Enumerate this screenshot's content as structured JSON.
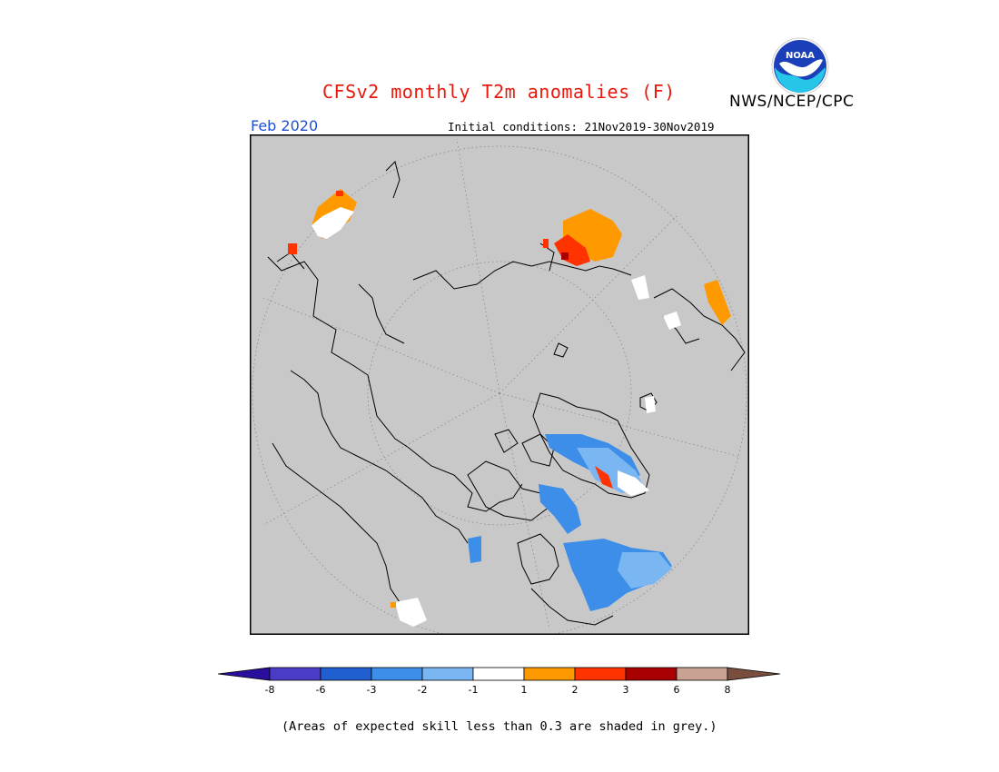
{
  "header": {
    "title": "CFSv2 monthly T2m anomalies (F)",
    "agency": "NWS/NCEP/CPC",
    "logo_text": "NOAA",
    "month": "Feb 2020",
    "initial_conditions": "Initial conditions: 21Nov2019-30Nov2019"
  },
  "map": {
    "projection": "north polar stereographic",
    "background_color": "#c8c8c8"
  },
  "colorbar": {
    "ticks": [
      "-8",
      "-6",
      "-3",
      "-2",
      "-1",
      "1",
      "2",
      "3",
      "6",
      "8"
    ],
    "colors": [
      "#2a0f9e",
      "#4b3cc8",
      "#1f5fd0",
      "#3d8ee8",
      "#7ab6f2",
      "#ffffff",
      "#ff9900",
      "#ff3300",
      "#a80000",
      "#c9a294",
      "#7a4e3e"
    ]
  },
  "footnote": "(Areas of expected skill less than 0.3 are shaded in grey.)"
}
